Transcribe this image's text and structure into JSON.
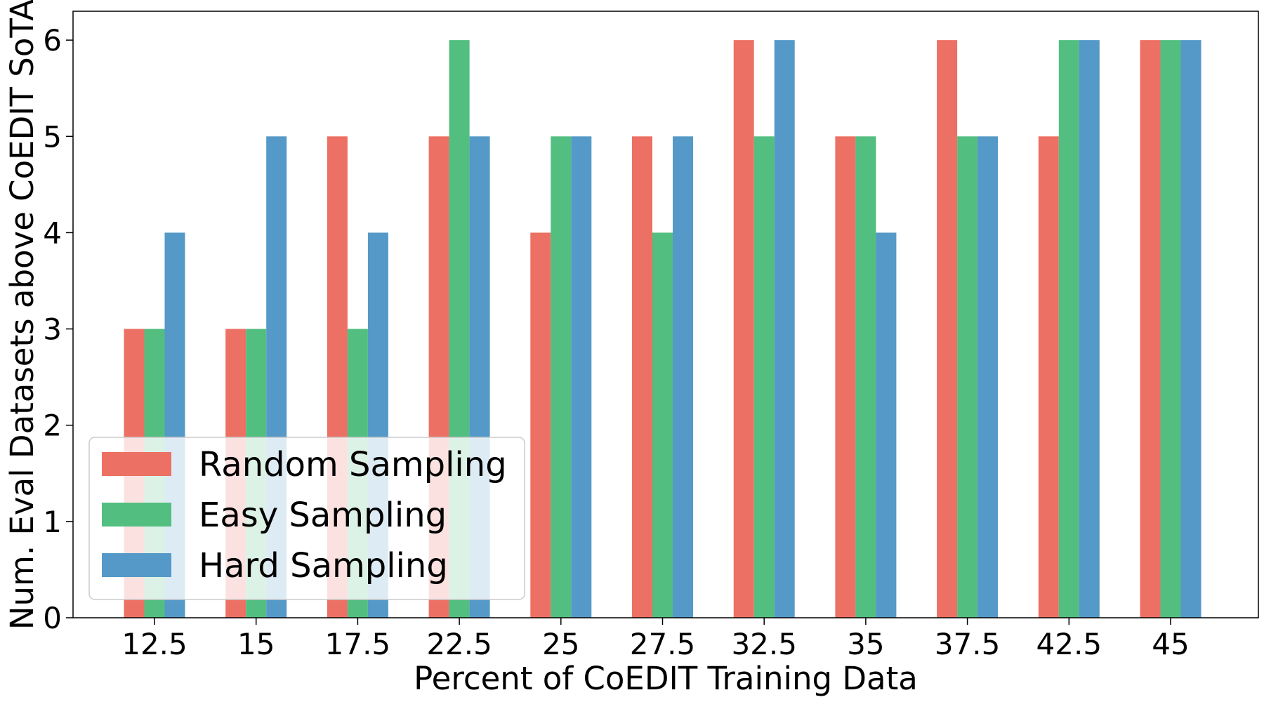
{
  "chart_data": {
    "type": "bar",
    "title": "",
    "xlabel": "Percent of CoEDIT Training Data",
    "ylabel": "Num. Eval Datasets above CoEDIT SoTA",
    "categories": [
      "12.5",
      "15",
      "17.5",
      "22.5",
      "25",
      "27.5",
      "32.5",
      "35",
      "37.5",
      "42.5",
      "45"
    ],
    "series": [
      {
        "name": "Random Sampling",
        "color": "#ec7063",
        "values": [
          3,
          3,
          5,
          5,
          4,
          5,
          6,
          5,
          6,
          5,
          6
        ]
      },
      {
        "name": "Easy Sampling",
        "color": "#52be80",
        "values": [
          3,
          3,
          3,
          6,
          5,
          4,
          5,
          5,
          5,
          6,
          6
        ]
      },
      {
        "name": "Hard Sampling",
        "color": "#5499c7",
        "values": [
          4,
          5,
          4,
          5,
          5,
          5,
          6,
          4,
          5,
          6,
          6
        ]
      }
    ],
    "ylim": [
      0,
      6.3
    ],
    "yticks": [
      "0",
      "1",
      "2",
      "3",
      "4",
      "5",
      "6"
    ],
    "grid": false,
    "legend": "lower-left"
  }
}
